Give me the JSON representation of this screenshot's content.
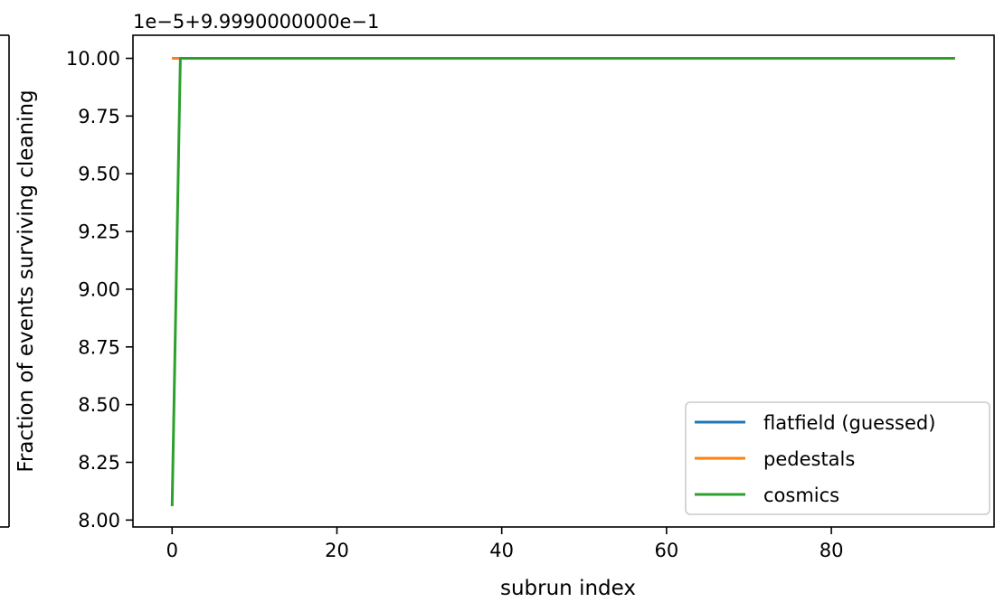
{
  "chart_data": {
    "type": "line",
    "title": "",
    "offset_text": "1e−5+9.9990000000e−1",
    "xlabel": "subrun index",
    "ylabel": "Fraction of events surviving cleaning",
    "xlim": [
      -4.75,
      99.75
    ],
    "ylim": [
      7.97,
      10.1
    ],
    "xticks": [
      0,
      20,
      40,
      60,
      80
    ],
    "xtick_labels": [
      "0",
      "20",
      "40",
      "60",
      "80"
    ],
    "yticks": [
      8.0,
      8.25,
      8.5,
      8.75,
      9.0,
      9.25,
      9.5,
      9.75,
      10.0
    ],
    "ytick_labels": [
      "8.00",
      "8.25",
      "8.50",
      "8.75",
      "9.00",
      "9.25",
      "9.50",
      "9.75",
      "10.00"
    ],
    "grid": false,
    "legend_position": "lower right",
    "series": [
      {
        "name": "flatfield (guessed)",
        "color": "#1f77b4",
        "x": [
          0,
          95
        ],
        "y": [
          10.0,
          10.0
        ]
      },
      {
        "name": "pedestals",
        "color": "#ff7f0e",
        "x": [
          0,
          95
        ],
        "y": [
          10.0,
          10.0
        ]
      },
      {
        "name": "cosmics",
        "color": "#2ca02c",
        "x": [
          0,
          1,
          95
        ],
        "y": [
          8.06,
          10.0,
          10.0
        ]
      }
    ]
  }
}
